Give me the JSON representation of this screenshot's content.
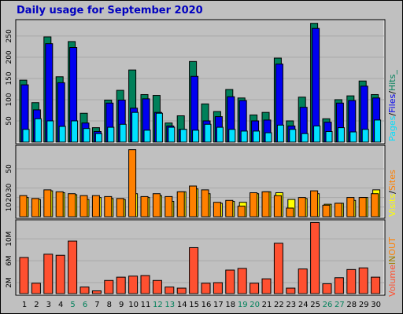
{
  "title": "Daily usage for September 2020",
  "colors": {
    "background": "#c0c0c0",
    "title": "#0000c0",
    "hits": "#00805a",
    "files": "#0000f0",
    "pages": "#00e0ff",
    "visits": "#ffff00",
    "sites": "#ff8000",
    "volume": "#ff5030",
    "weekday_label": "#000000",
    "weekend_label": "#00805a"
  },
  "chart_data": [
    {
      "type": "bar",
      "title": "Daily usage for September 2020",
      "categories": [
        "1",
        "2",
        "3",
        "4",
        "5",
        "6",
        "7",
        "8",
        "9",
        "10",
        "11",
        "12",
        "13",
        "14",
        "15",
        "16",
        "17",
        "18",
        "19",
        "20",
        "21",
        "22",
        "23",
        "24",
        "25",
        "26",
        "27",
        "28",
        "29",
        "30"
      ],
      "weekend_days": [
        "5",
        "6",
        "12",
        "13",
        "19",
        "20",
        "26",
        "27"
      ],
      "ylim": [
        0,
        285
      ],
      "y_ticks": [
        "50",
        "100",
        "150",
        "200",
        "250"
      ],
      "legend_label_parts": [
        "Pages",
        "/",
        "Files",
        "/",
        "Hits_"
      ],
      "series": [
        {
          "name": "Hits",
          "values": [
            146,
            93,
            248,
            154,
            237,
            68,
            34,
            99,
            122,
            170,
            112,
            110,
            45,
            62,
            190,
            90,
            72,
            124,
            104,
            64,
            70,
            198,
            50,
            106,
            280,
            55,
            100,
            109,
            144,
            112
          ]
        },
        {
          "name": "Files",
          "values": [
            135,
            76,
            232,
            140,
            223,
            45,
            25,
            92,
            99,
            80,
            102,
            70,
            38,
            30,
            155,
            50,
            60,
            107,
            98,
            50,
            52,
            184,
            38,
            82,
            268,
            47,
            92,
            98,
            132,
            104
          ]
        },
        {
          "name": "Pages",
          "values": [
            30,
            55,
            50,
            37,
            50,
            32,
            20,
            35,
            42,
            70,
            28,
            68,
            35,
            30,
            28,
            42,
            35,
            30,
            26,
            26,
            22,
            40,
            30,
            20,
            38,
            25,
            34,
            24,
            30,
            52
          ]
        }
      ]
    },
    {
      "type": "bar",
      "categories": [
        "1",
        "2",
        "3",
        "4",
        "5",
        "6",
        "7",
        "8",
        "9",
        "10",
        "11",
        "12",
        "13",
        "14",
        "15",
        "16",
        "17",
        "18",
        "19",
        "20",
        "21",
        "22",
        "23",
        "24",
        "25",
        "26",
        "27",
        "28",
        "29",
        "30"
      ],
      "ylim": [
        0,
        73
      ],
      "y_ticks": [
        "10",
        "20",
        "30",
        "50"
      ],
      "legend_label_parts": [
        "Visits",
        "/",
        "Sites"
      ],
      "series": [
        {
          "name": "Visits",
          "values": [
            20,
            18,
            27,
            25,
            23,
            18,
            20,
            19,
            18,
            24,
            20,
            22,
            16,
            26,
            29,
            24,
            14,
            16,
            15,
            24,
            26,
            25,
            18,
            19,
            24,
            13,
            14,
            17,
            20,
            28
          ]
        },
        {
          "name": "Sites",
          "values": [
            22,
            19,
            28,
            26,
            24,
            22,
            22,
            21,
            19,
            70,
            21,
            24,
            21,
            26,
            32,
            28,
            15,
            17,
            11,
            25,
            26,
            22,
            9,
            20,
            27,
            12,
            14,
            20,
            20,
            24
          ]
        }
      ]
    },
    {
      "type": "bar",
      "categories": [
        "1",
        "2",
        "3",
        "4",
        "5",
        "6",
        "7",
        "8",
        "9",
        "10",
        "11",
        "12",
        "13",
        "14",
        "15",
        "16",
        "17",
        "18",
        "19",
        "20",
        "21",
        "22",
        "23",
        "24",
        "25",
        "26",
        "27",
        "28",
        "29",
        "30"
      ],
      "ylim": [
        0,
        13.2
      ],
      "y_ticks": [
        "2M",
        "6M",
        "10M"
      ],
      "legend_label_parts": [
        "Volume",
        "IN",
        "OUT"
      ],
      "series": [
        {
          "name": "Volume",
          "values": [
            6.6,
            1.9,
            7.2,
            7.0,
            9.6,
            1.2,
            0.5,
            2.4,
            3.0,
            3.2,
            3.3,
            2.4,
            1.2,
            1.0,
            8.4,
            1.9,
            2.0,
            4.3,
            4.6,
            1.9,
            2.7,
            9.2,
            1.0,
            4.5,
            13.0,
            1.8,
            2.9,
            4.4,
            4.7,
            3.0
          ]
        }
      ]
    }
  ]
}
